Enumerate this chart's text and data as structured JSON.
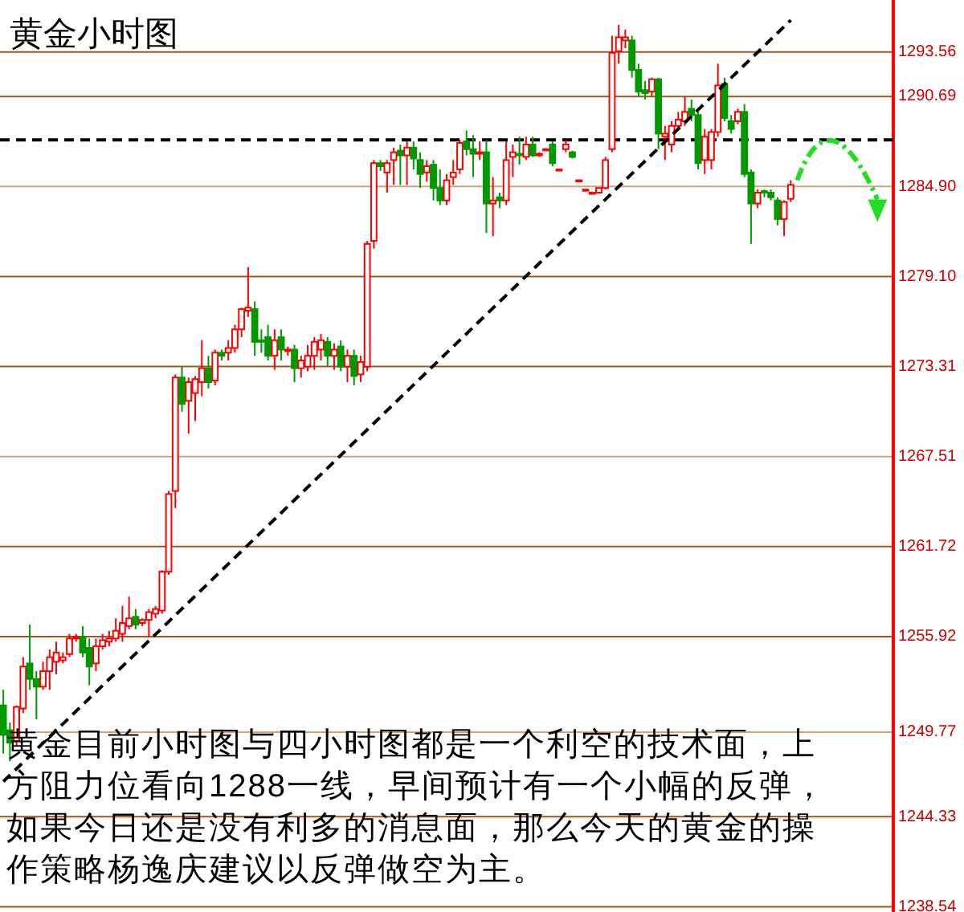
{
  "chart_data": {
    "type": "candlestick",
    "title": "黄金小时图",
    "categories": [
      null,
      null,
      null,
      null,
      null,
      null,
      null,
      null,
      null,
      null,
      null,
      null,
      null,
      null,
      null,
      null,
      null,
      null,
      null,
      null,
      null,
      null,
      null,
      null,
      null,
      null,
      null,
      null,
      null,
      null,
      null,
      null,
      null,
      null,
      null,
      null,
      null,
      null,
      null,
      null,
      null,
      null,
      null,
      null,
      null,
      null,
      null,
      null,
      null,
      null,
      null,
      null,
      null,
      null,
      null,
      null,
      null,
      null,
      null,
      null,
      null,
      null,
      null,
      null,
      null,
      null,
      null,
      null,
      null,
      null,
      null,
      null,
      null,
      null,
      null,
      null,
      null,
      null,
      null,
      null,
      null,
      null,
      null,
      null,
      null,
      null,
      null,
      null,
      null,
      null,
      null,
      null,
      null,
      null,
      null,
      null,
      null,
      null,
      null,
      null,
      null,
      null,
      null,
      null,
      null,
      null,
      null,
      null,
      null,
      null,
      null,
      null,
      null,
      null,
      null,
      null,
      null,
      null,
      null,
      null,
      null,
      null,
      null,
      null,
      null,
      null,
      null,
      null,
      null,
      null,
      null,
      null,
      null,
      null,
      null
    ],
    "ohlc": [
      [
        1251.5,
        1252.5,
        1248.4,
        1249.6
      ],
      [
        1249.9,
        1250.4,
        1247.9,
        1249.1
      ],
      [
        1249.2,
        1251.5,
        1248.9,
        1251.4
      ],
      [
        1251.3,
        1254.6,
        1251.0,
        1254.0
      ],
      [
        1254.2,
        1256.7,
        1252.5,
        1253.2
      ],
      [
        1253.2,
        1253.7,
        1250.6,
        1252.7
      ],
      [
        1252.7,
        1254.3,
        1252.5,
        1253.7
      ],
      [
        1253.7,
        1255.1,
        1252.5,
        1254.6
      ],
      [
        1254.3,
        1255.6,
        1253.5,
        1254.9
      ],
      [
        1254.4,
        1254.9,
        1254.2,
        1254.6
      ],
      [
        1254.8,
        1256.1,
        1254.6,
        1255.8
      ],
      [
        1255.8,
        1256.1,
        1255.6,
        1255.9
      ],
      [
        1255.9,
        1256.6,
        1254.6,
        1254.9
      ],
      [
        1255.2,
        1255.8,
        1252.8,
        1254.0
      ],
      [
        1254.2,
        1255.8,
        1253.7,
        1255.3
      ],
      [
        1255.3,
        1256.1,
        1255.1,
        1255.7
      ],
      [
        1255.6,
        1256.3,
        1255.3,
        1255.8
      ],
      [
        1255.8,
        1257.1,
        1255.6,
        1256.3
      ],
      [
        1256.1,
        1257.9,
        1255.6,
        1256.8
      ],
      [
        1256.6,
        1258.5,
        1256.4,
        1257.1
      ],
      [
        1257.2,
        1257.7,
        1256.4,
        1256.7
      ],
      [
        1256.8,
        1257.1,
        1256.6,
        1257.0
      ],
      [
        1257.0,
        1257.7,
        1255.9,
        1257.5
      ],
      [
        1257.4,
        1257.9,
        1257.1,
        1257.7
      ],
      [
        1257.6,
        1260.2,
        1257.4,
        1260.1
      ],
      [
        1260.1,
        1265.3,
        1259.9,
        1265.1
      ],
      [
        1265.3,
        1272.8,
        1264.2,
        1272.6
      ],
      [
        1272.6,
        1273.3,
        1270.4,
        1270.9
      ],
      [
        1271.1,
        1272.6,
        1269.0,
        1272.3
      ],
      [
        1271.6,
        1272.7,
        1269.8,
        1272.5
      ],
      [
        1272.3,
        1275.0,
        1271.4,
        1273.2
      ],
      [
        1273.2,
        1274.0,
        1271.9,
        1272.3
      ],
      [
        1272.4,
        1274.4,
        1272.1,
        1274.2
      ],
      [
        1274.2,
        1274.4,
        1273.7,
        1274.0
      ],
      [
        1274.2,
        1275.0,
        1273.7,
        1274.5
      ],
      [
        1274.5,
        1276.0,
        1274.2,
        1275.7
      ],
      [
        1275.7,
        1277.1,
        1275.2,
        1277.0
      ],
      [
        1276.9,
        1279.7,
        1276.5,
        1277.1
      ],
      [
        1277.0,
        1277.5,
        1274.0,
        1274.9
      ],
      [
        1275.0,
        1275.7,
        1274.2,
        1274.9
      ],
      [
        1275.2,
        1276.0,
        1273.7,
        1274.0
      ],
      [
        1274.0,
        1275.7,
        1273.1,
        1275.0
      ],
      [
        1275.2,
        1275.7,
        1273.7,
        1274.4
      ],
      [
        1274.3,
        1274.6,
        1274.0,
        1274.4
      ],
      [
        1274.4,
        1274.7,
        1272.3,
        1273.2
      ],
      [
        1273.2,
        1274.0,
        1272.6,
        1273.7
      ],
      [
        1273.3,
        1274.7,
        1273.0,
        1274.0
      ],
      [
        1274.0,
        1275.2,
        1273.1,
        1274.9
      ],
      [
        1274.4,
        1275.4,
        1273.7,
        1275.0
      ],
      [
        1274.9,
        1275.2,
        1273.3,
        1274.0
      ],
      [
        1274.0,
        1274.8,
        1273.1,
        1274.4
      ],
      [
        1274.6,
        1275.0,
        1273.0,
        1273.3
      ],
      [
        1273.3,
        1274.4,
        1272.3,
        1274.0
      ],
      [
        1274.0,
        1274.4,
        1272.1,
        1272.7
      ],
      [
        1272.8,
        1274.0,
        1272.3,
        1273.6
      ],
      [
        1273.3,
        1281.4,
        1273.0,
        1281.2
      ],
      [
        1281.4,
        1286.6,
        1280.9,
        1286.4
      ],
      [
        1286.4,
        1286.6,
        1285.9,
        1286.2
      ],
      [
        1285.8,
        1286.6,
        1284.5,
        1286.4
      ],
      [
        1286.6,
        1287.4,
        1285.0,
        1287.1
      ],
      [
        1287.2,
        1287.6,
        1285.0,
        1286.9
      ],
      [
        1286.9,
        1287.8,
        1285.0,
        1287.4
      ],
      [
        1287.4,
        1287.8,
        1286.0,
        1286.7
      ],
      [
        1286.6,
        1287.1,
        1284.8,
        1285.7
      ],
      [
        1285.8,
        1286.6,
        1285.2,
        1286.2
      ],
      [
        1286.3,
        1286.6,
        1284.0,
        1284.8
      ],
      [
        1284.8,
        1286.0,
        1283.7,
        1284.0
      ],
      [
        1284.0,
        1285.7,
        1283.7,
        1285.3
      ],
      [
        1285.5,
        1286.6,
        1285.0,
        1285.8
      ],
      [
        1286.0,
        1287.9,
        1285.7,
        1287.7
      ],
      [
        1287.8,
        1288.5,
        1286.9,
        1287.3
      ],
      [
        1287.3,
        1288.2,
        1285.5,
        1287.0
      ],
      [
        1287.0,
        1287.8,
        1286.6,
        1287.1
      ],
      [
        1287.1,
        1287.9,
        1281.9,
        1283.8
      ],
      [
        1283.8,
        1285.5,
        1281.7,
        1284.0
      ],
      [
        1284.2,
        1284.5,
        1283.5,
        1284.0
      ],
      [
        1284.0,
        1287.8,
        1283.7,
        1286.6
      ],
      [
        1286.8,
        1287.6,
        1285.5,
        1287.1
      ],
      [
        1287.0,
        1288.1,
        1286.3,
        1286.9
      ],
      [
        1286.8,
        1288.1,
        1286.6,
        1287.6
      ],
      [
        1287.6,
        1288.1,
        1286.8,
        1286.9
      ],
      [
        1286.9,
        1287.1,
        1286.8,
        1287.0
      ],
      [
        1287.3,
        1287.3,
        1287.3,
        1287.3
      ],
      [
        1287.6,
        1287.8,
        1286.2,
        1286.4
      ],
      [
        1286.0,
        1286.0,
        1286.0,
        1286.0
      ],
      [
        1287.3,
        1287.9,
        1287.1,
        1287.6
      ],
      [
        1287.1,
        1287.2,
        1286.7,
        1286.8
      ],
      [
        1285.3,
        1285.3,
        1285.3,
        1285.3
      ],
      [
        1284.7,
        1284.7,
        1284.7,
        1284.7
      ],
      [
        1284.5,
        1284.5,
        1284.5,
        1284.5
      ],
      [
        1284.5,
        1284.8,
        1284.5,
        1284.8
      ],
      [
        1284.8,
        1286.8,
        1284.7,
        1286.6
      ],
      [
        1287.3,
        1294.6,
        1287.1,
        1293.5
      ],
      [
        1293.6,
        1295.3,
        1292.8,
        1294.5
      ],
      [
        1294.3,
        1295.0,
        1293.8,
        1294.5
      ],
      [
        1294.3,
        1294.6,
        1291.9,
        1292.4
      ],
      [
        1292.4,
        1292.8,
        1290.7,
        1291.0
      ],
      [
        1291.1,
        1291.7,
        1290.5,
        1290.9
      ],
      [
        1291.0,
        1291.9,
        1290.7,
        1291.8
      ],
      [
        1291.8,
        1291.9,
        1287.3,
        1288.3
      ],
      [
        1288.1,
        1288.8,
        1286.6,
        1288.3
      ],
      [
        1287.6,
        1289.1,
        1287.1,
        1288.8
      ],
      [
        1288.8,
        1289.7,
        1288.6,
        1289.2
      ],
      [
        1289.1,
        1290.7,
        1288.8,
        1289.7
      ],
      [
        1289.9,
        1290.5,
        1289.1,
        1289.5
      ],
      [
        1289.5,
        1289.7,
        1286.0,
        1286.4
      ],
      [
        1286.6,
        1288.6,
        1285.7,
        1288.1
      ],
      [
        1286.6,
        1288.6,
        1286.0,
        1288.4
      ],
      [
        1288.4,
        1292.8,
        1288.1,
        1291.4
      ],
      [
        1291.5,
        1291.9,
        1289.1,
        1289.3
      ],
      [
        1289.1,
        1289.5,
        1288.3,
        1288.6
      ],
      [
        1289.1,
        1289.9,
        1288.9,
        1289.7
      ],
      [
        1289.7,
        1290.2,
        1285.5,
        1285.7
      ],
      [
        1285.8,
        1286.0,
        1281.2,
        1283.8
      ],
      [
        1283.8,
        1284.7,
        1283.5,
        1284.5
      ],
      [
        1284.6,
        1284.7,
        1284.2,
        1284.5
      ],
      [
        1284.5,
        1284.7,
        1284.0,
        1284.2
      ],
      [
        1284.0,
        1284.2,
        1282.4,
        1282.8
      ],
      [
        1282.8,
        1284.0,
        1281.7,
        1283.9
      ],
      [
        1284.1,
        1285.3,
        1283.9,
        1285.0
      ],
      null,
      null,
      null,
      null,
      null,
      null,
      null,
      null,
      null,
      null,
      null,
      null,
      null,
      null,
      null
    ],
    "series": [
      {
        "type": "line",
        "values": [
          1246.6,
          null,
          null,
          null,
          null,
          null,
          null,
          null,
          null,
          null,
          null,
          null,
          null,
          null,
          null,
          null,
          null,
          null,
          null,
          null,
          null,
          null,
          null,
          null,
          null,
          null,
          null,
          null,
          null,
          null,
          null,
          null,
          null,
          null,
          null,
          null,
          null,
          null,
          null,
          null,
          null,
          null,
          null,
          null,
          null,
          null,
          null,
          null,
          null,
          null,
          null,
          null,
          null,
          null,
          null,
          null,
          null,
          null,
          null,
          null,
          null,
          null,
          null,
          null,
          null,
          null,
          null,
          null,
          null,
          null,
          null,
          null,
          null,
          null,
          null,
          null,
          null,
          null,
          null,
          null,
          null,
          null,
          null,
          null,
          null,
          null,
          null,
          null,
          null,
          null,
          null,
          null,
          null,
          null,
          null,
          null,
          null,
          null,
          null,
          null,
          null,
          null,
          null,
          null,
          null,
          null,
          null,
          null,
          null,
          null,
          null,
          null,
          null,
          null,
          null,
          null,
          null,
          null,
          null,
          1295.6,
          null,
          null,
          null,
          null,
          null,
          null,
          null,
          null,
          null,
          null,
          null,
          null,
          null,
          null,
          null
        ],
        "color": "#000000",
        "line_style": "dashed"
      }
    ],
    "ref_lines": [
      {
        "axis": "y",
        "value": 1287.9,
        "color": "#000000",
        "line_style": "dashed"
      }
    ],
    "ylim": [
      1238.2,
      1296.9
    ],
    "yticks": [
      {
        "value": 1293.56,
        "label": "1293.56"
      },
      {
        "value": 1290.69,
        "label": "1290.69"
      },
      {
        "value": 1284.9,
        "label": "1284.90"
      },
      {
        "value": 1279.1,
        "label": "1279.10"
      },
      {
        "value": 1273.31,
        "label": "1273.31"
      },
      {
        "value": 1267.51,
        "label": "1267.51"
      },
      {
        "value": 1261.72,
        "label": "1261.72"
      },
      {
        "value": 1255.92,
        "label": "1255.92"
      },
      {
        "value": 1249.77,
        "label": "1249.77"
      },
      {
        "value": 1244.33,
        "label": "1244.33"
      },
      {
        "value": 1238.54,
        "label": "1238.54"
      }
    ],
    "grid": "y",
    "tick_labels": "y",
    "annotations": [
      "黄金目前小时图与四小时图都是一个利空的技术面，上方阻力位看向1288一线，早间预计有一个小幅的反弹，如果今日还是没有利多的消息面，那么今天的黄金的操作策略杨逸庆建议以反弹做空为主。"
    ]
  }
}
